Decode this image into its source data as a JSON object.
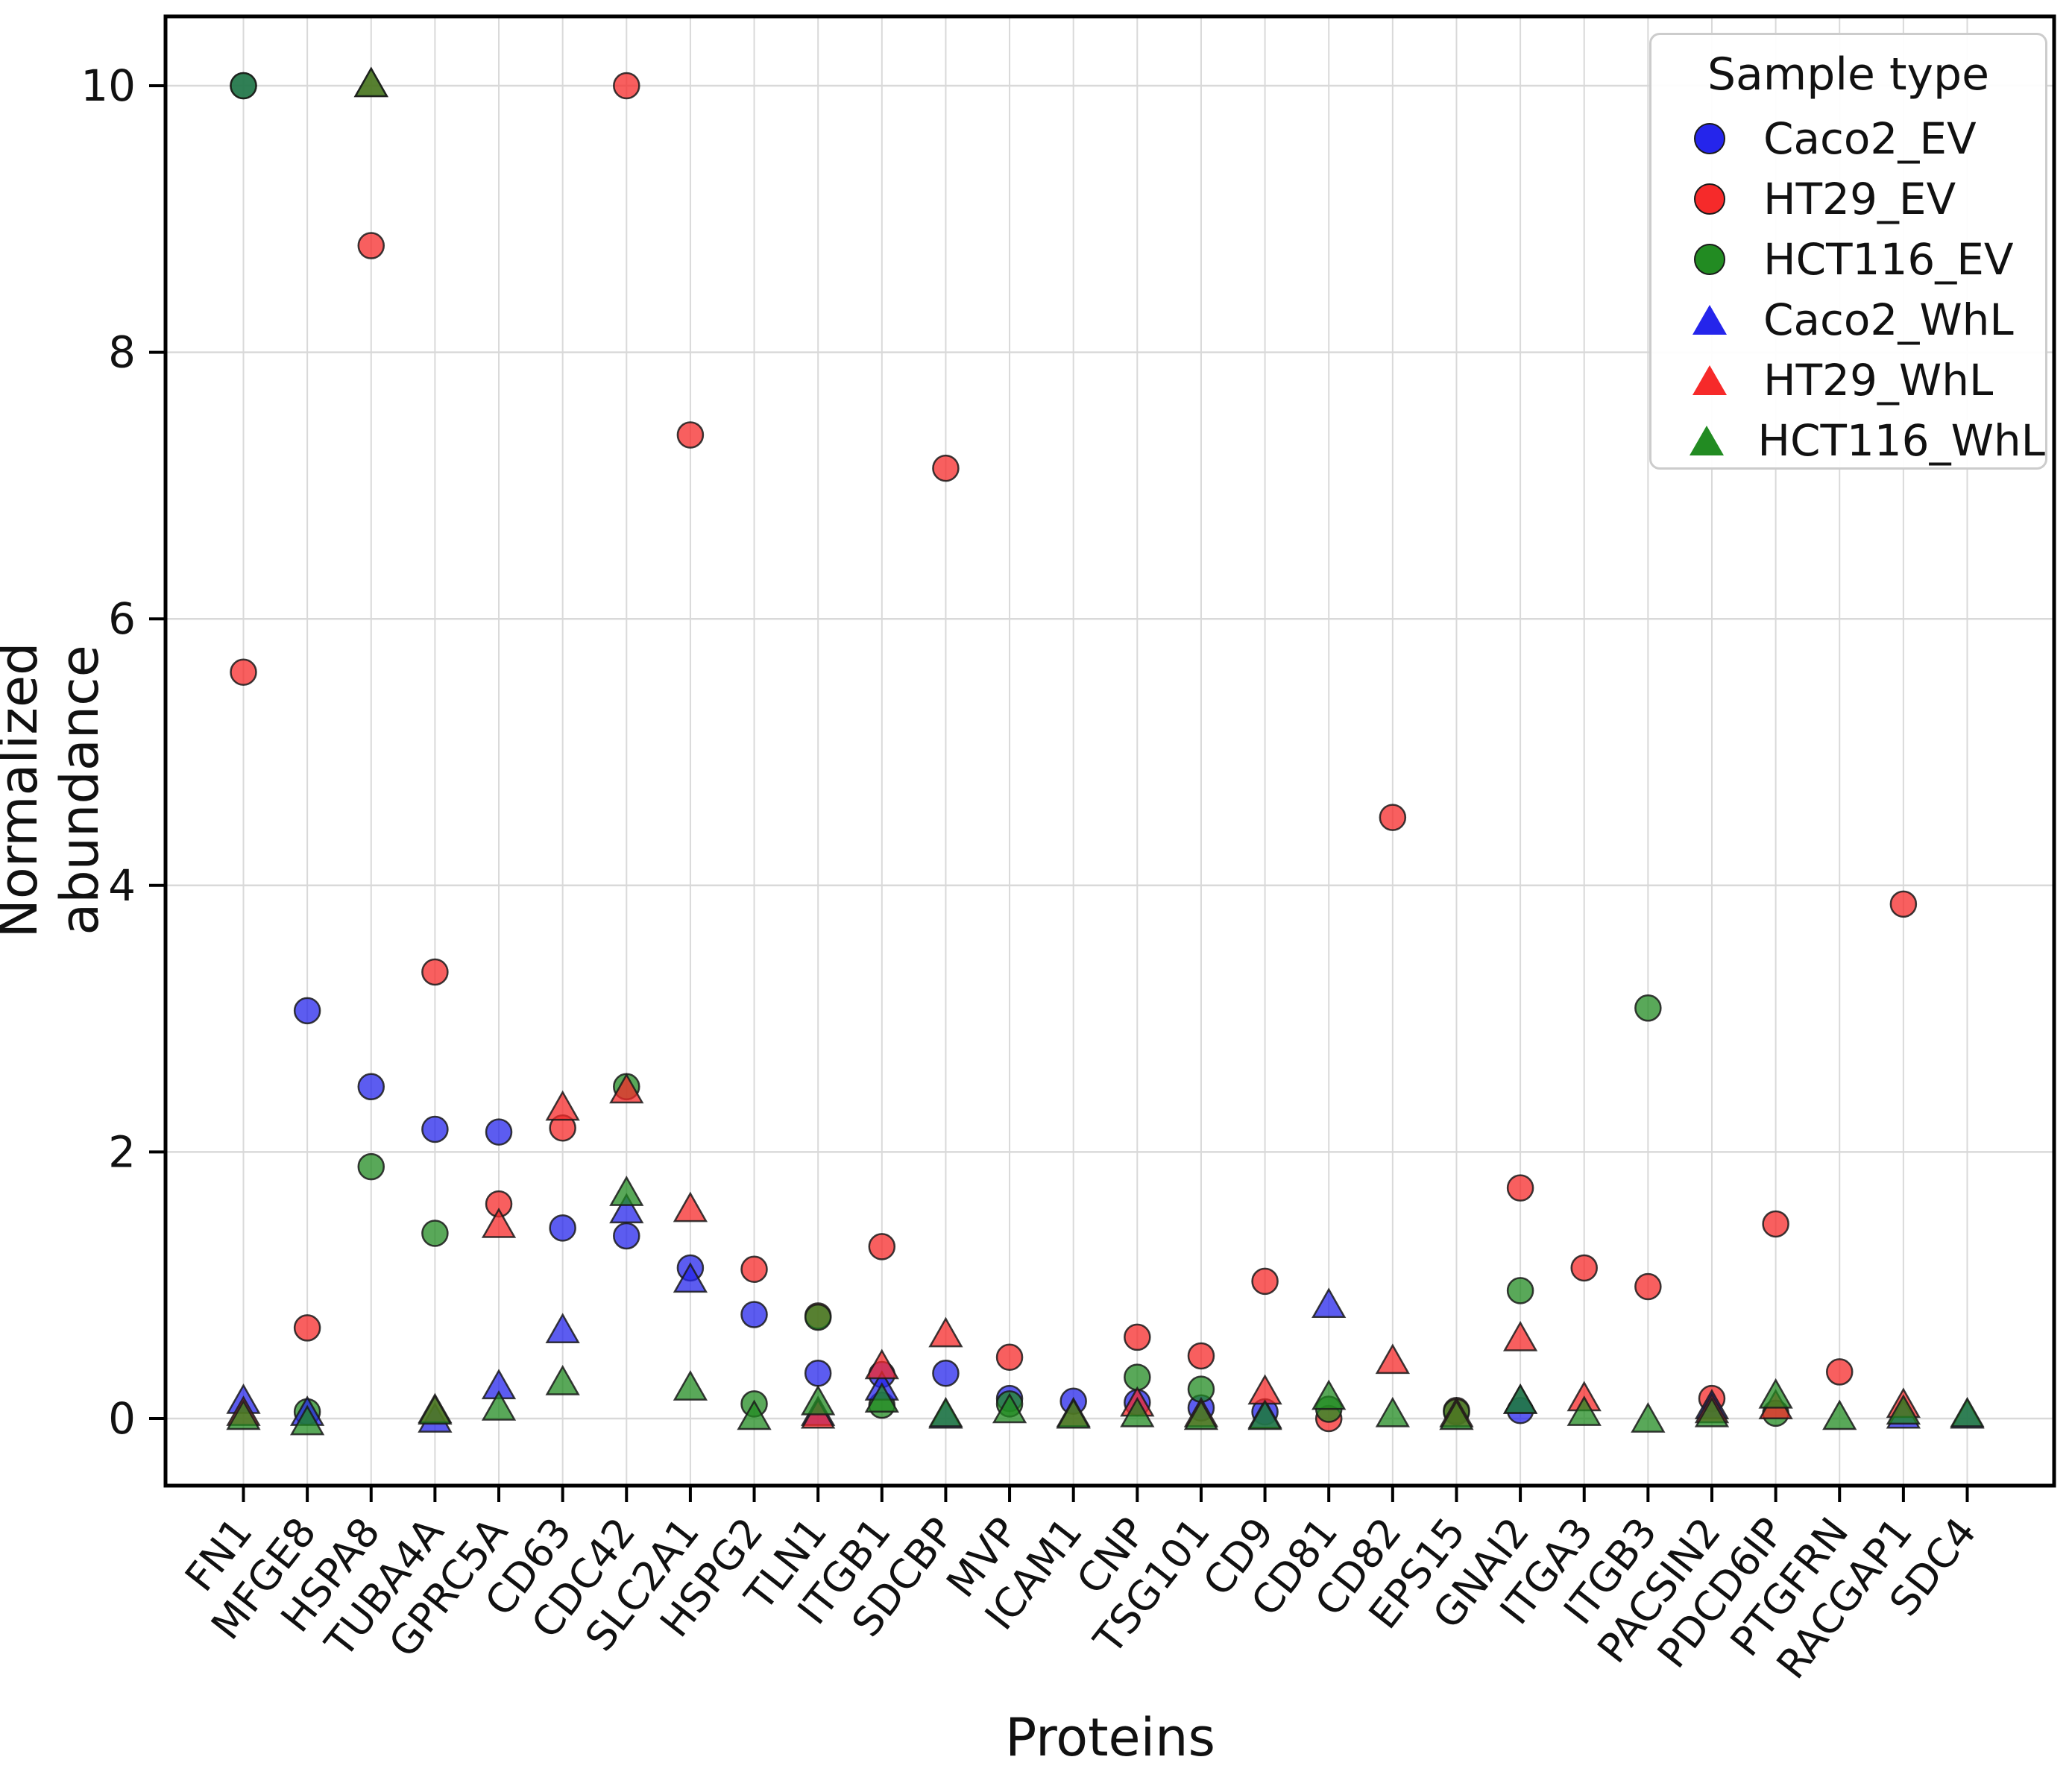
{
  "chart_data": {
    "type": "scatter",
    "title": "",
    "xlabel": "Proteins",
    "ylabel": "Normalized abundance",
    "legend_title": "Sample type",
    "legend_position": "upper right",
    "grid": true,
    "ylim": [
      -0.5,
      10.52
    ],
    "yticks": [
      0,
      2,
      4,
      6,
      8,
      10
    ],
    "categories": [
      "FN1",
      "MFGE8",
      "HSPA8",
      "TUBA4A",
      "GPRC5A",
      "CD63",
      "CDC42",
      "SLC2A1",
      "HSPG2",
      "TLN1",
      "ITGB1",
      "SDCBP",
      "MVP",
      "ICAM1",
      "CNP",
      "TSG101",
      "CD9",
      "CD81",
      "CD82",
      "EPS15",
      "GNAI2",
      "ITGA3",
      "ITGB3",
      "PACSIN2",
      "PDCD6IP",
      "PTGFRN",
      "RACGAP1",
      "SDC4"
    ],
    "series": [
      {
        "name": "Caco2_EV",
        "marker": "circle",
        "color": "#2525eb",
        "values": [
          10.0,
          3.06,
          2.49,
          2.17,
          2.15,
          1.43,
          1.37,
          1.13,
          0.78,
          0.34,
          0.33,
          0.34,
          0.15,
          0.13,
          0.12,
          0.08,
          0.05,
          null,
          null,
          null,
          0.06,
          null,
          null,
          null,
          null,
          null,
          null,
          null
        ]
      },
      {
        "name": "HT29_EV",
        "marker": "circle",
        "color": "#f62a2a",
        "values": [
          5.6,
          0.68,
          8.8,
          3.35,
          1.61,
          2.18,
          10.0,
          7.38,
          1.12,
          0.77,
          1.29,
          7.13,
          0.46,
          null,
          0.61,
          0.47,
          1.03,
          0.0,
          4.51,
          0.06,
          1.73,
          1.13,
          0.99,
          0.15,
          1.46,
          0.35,
          3.86,
          null
        ]
      },
      {
        "name": "HCT116_EV",
        "marker": "circle",
        "color": "#228b22",
        "values": [
          10.0,
          0.05,
          1.89,
          1.39,
          null,
          null,
          2.49,
          null,
          0.11,
          0.76,
          0.1,
          null,
          0.11,
          null,
          0.31,
          0.22,
          null,
          0.07,
          null,
          0.05,
          0.96,
          null,
          3.08,
          null,
          0.04,
          null,
          null,
          null
        ]
      },
      {
        "name": "Caco2_WhL",
        "marker": "triangle",
        "color": "#2525eb",
        "values": [
          0.12,
          0.03,
          null,
          -0.02,
          0.23,
          0.65,
          1.55,
          1.03,
          null,
          0.03,
          0.22,
          0.01,
          null,
          null,
          null,
          null,
          0.01,
          0.84,
          null,
          null,
          0.12,
          null,
          null,
          0.08,
          null,
          null,
          0.01,
          0.01
        ]
      },
      {
        "name": "HT29_WhL",
        "marker": "triangle",
        "color": "#f62a2a",
        "values": [
          0.03,
          null,
          10.0,
          0.05,
          1.44,
          2.32,
          2.45,
          1.56,
          null,
          0.01,
          0.38,
          0.62,
          null,
          0.02,
          0.1,
          0.02,
          0.19,
          null,
          0.42,
          0.02,
          0.59,
          0.14,
          null,
          0.05,
          0.08,
          null,
          0.09,
          null
        ]
      },
      {
        "name": "HCT116_WhL",
        "marker": "triangle",
        "color": "#228b22",
        "values": [
          0.0,
          -0.04,
          10.0,
          0.04,
          0.07,
          0.26,
          1.68,
          0.22,
          0.0,
          0.11,
          0.13,
          0.02,
          0.05,
          0.01,
          0.02,
          0.0,
          0.0,
          0.15,
          0.02,
          0.0,
          0.12,
          0.03,
          -0.02,
          0.02,
          0.16,
          0.0,
          0.04,
          0.02
        ]
      }
    ]
  }
}
